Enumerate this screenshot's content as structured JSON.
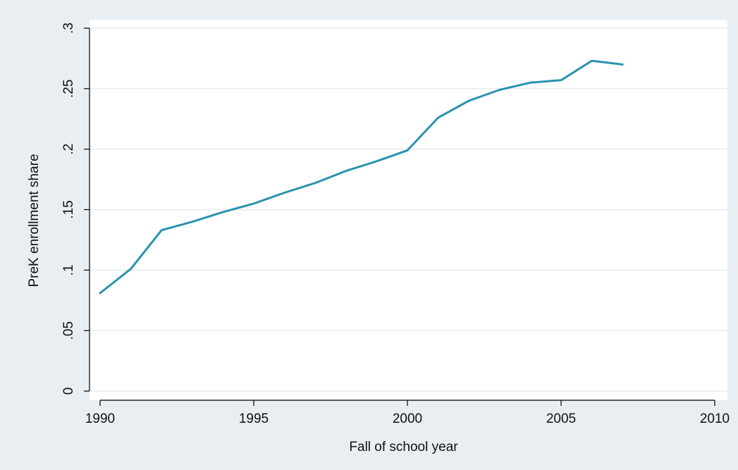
{
  "chart_data": {
    "type": "line",
    "title": "",
    "xlabel": "Fall of school year",
    "ylabel": "PreK enrollment share",
    "xlim": [
      1990,
      2010
    ],
    "ylim": [
      0,
      0.3
    ],
    "x_ticks": [
      1990,
      1995,
      2000,
      2005,
      2010
    ],
    "x_tick_labels": [
      "1990",
      "1995",
      "2000",
      "2005",
      "2010"
    ],
    "y_ticks": [
      0,
      0.05,
      0.1,
      0.15,
      0.2,
      0.25,
      0.3
    ],
    "y_tick_labels": [
      "0",
      ".05",
      ".1",
      ".15",
      ".2",
      ".25",
      ".3"
    ],
    "grid": true,
    "legend": "none",
    "colors": {
      "background": "#e9eef2",
      "plot_background": "#ffffff",
      "grid": "#e6ebef",
      "axis": "#000000",
      "series": "#2a93ad"
    },
    "series": [
      {
        "x": [
          1990,
          1991,
          1992,
          1993,
          1994,
          1995,
          1996,
          1997,
          1998,
          1999,
          2000,
          2001,
          2002,
          2003,
          2004,
          2005,
          2006,
          2007
        ],
        "values": [
          0.081,
          0.101,
          0.133,
          0.14,
          0.148,
          0.155,
          0.164,
          0.172,
          0.182,
          0.19,
          0.199,
          0.226,
          0.24,
          0.249,
          0.255,
          0.257,
          0.273,
          0.27
        ]
      }
    ]
  }
}
